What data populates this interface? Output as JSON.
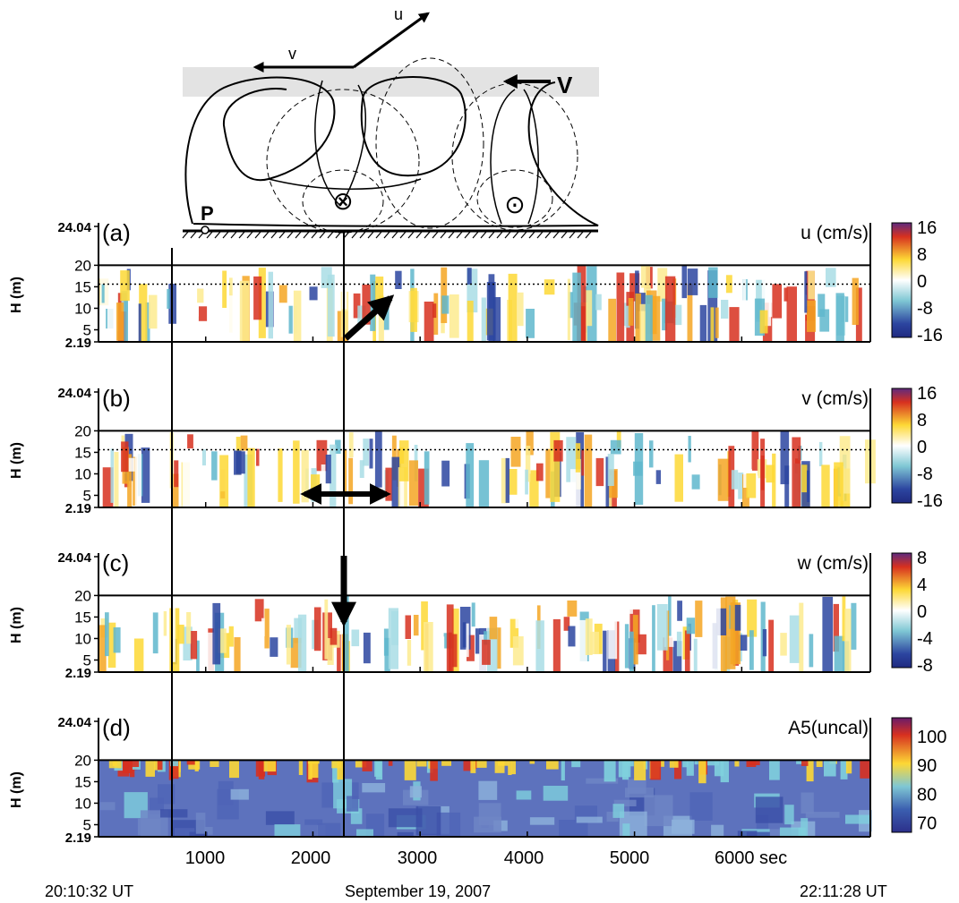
{
  "schematic": {
    "u_label": "u",
    "v_label": "v",
    "V_label": "V",
    "P_label": "P",
    "into_page_symbol": "⊗",
    "out_of_page_symbol": "⊙"
  },
  "panels": [
    {
      "letter": "(a)",
      "variable_label": "u (cm/s)",
      "colorbar_ticks": [
        "16",
        "8",
        "0",
        "-8",
        "-16"
      ]
    },
    {
      "letter": "(b)",
      "variable_label": "v (cm/s)",
      "colorbar_ticks": [
        "16",
        "8",
        "0",
        "-8",
        "-16"
      ]
    },
    {
      "letter": "(c)",
      "variable_label": "w (cm/s)",
      "colorbar_ticks": [
        "8",
        "4",
        "0",
        "-4",
        "-8"
      ]
    },
    {
      "letter": "(d)",
      "variable_label": "A5(uncal)",
      "colorbar_ticks": [
        "100",
        "90",
        "80",
        "70"
      ]
    }
  ],
  "y_axis": {
    "label": "H (m)",
    "ticks": [
      "24.04",
      "20",
      "15",
      "10",
      "5",
      "2.19"
    ]
  },
  "x_axis": {
    "ticks": [
      "1000",
      "2000",
      "3000",
      "4000",
      "5000",
      "6000 sec"
    ]
  },
  "footer": {
    "start_time": "20:10:32 UT",
    "date": "September 19, 2007",
    "end_time": "22:11:28 UT"
  },
  "colors": {
    "high": "#d7301f",
    "mid_high": "#fdd835",
    "neutral": "#ffffff",
    "mid_low": "#5fb7cc",
    "low": "#2c45a0",
    "extreme_high": "#6a1b6a",
    "extreme_low": "#1f2a80"
  },
  "chart_data": [
    {
      "type": "heatmap",
      "title": "u (cm/s)",
      "ylabel": "H (m)",
      "xlim": [
        0,
        7200
      ],
      "ylim": [
        2.19,
        24.04
      ],
      "clim": [
        -16,
        16
      ],
      "marked_times": [
        720,
        2330
      ],
      "reference_height": 15.6
    },
    {
      "type": "heatmap",
      "title": "v (cm/s)",
      "ylabel": "H (m)",
      "xlim": [
        0,
        7200
      ],
      "ylim": [
        2.19,
        24.04
      ],
      "clim": [
        -16,
        16
      ],
      "marked_times": [
        720,
        2330
      ],
      "reference_height": 15.6
    },
    {
      "type": "heatmap",
      "title": "w (cm/s)",
      "ylabel": "H (m)",
      "xlim": [
        0,
        7200
      ],
      "ylim": [
        2.19,
        24.04
      ],
      "clim": [
        -8,
        8
      ],
      "marked_times": [
        720,
        2330
      ]
    },
    {
      "type": "heatmap",
      "title": "A5(uncal)",
      "ylabel": "H (m)",
      "xlim": [
        0,
        7200
      ],
      "ylim": [
        2.19,
        24.04
      ],
      "clim": [
        65,
        105
      ],
      "marked_times": [
        720,
        2330
      ]
    }
  ]
}
